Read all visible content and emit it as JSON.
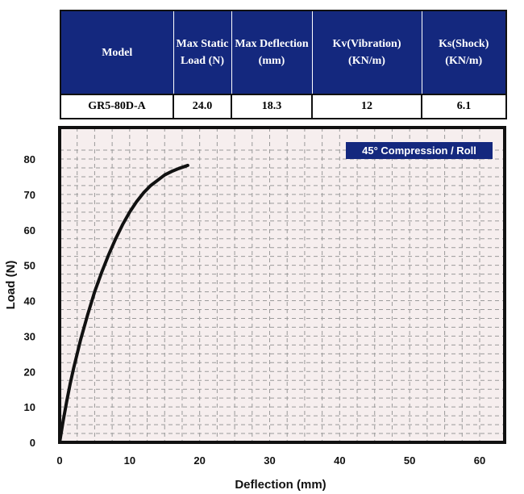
{
  "table": {
    "headers": [
      "Model",
      "Max Static Load (N)",
      "Max Deflection (mm)",
      "Kv(Vibration) (KN/m)",
      "Ks(Shock) (KN/m)"
    ],
    "row": [
      "GR5-80D-A",
      "24.0",
      "18.3",
      "12",
      "6.1"
    ]
  },
  "chart_data": {
    "type": "line",
    "title": "45° Compression / Roll",
    "xlabel": "Deflection (mm)",
    "ylabel": "Load (N)",
    "xlim": [
      0,
      60
    ],
    "ylim": [
      0,
      80
    ],
    "xticks": [
      0,
      10,
      20,
      30,
      40,
      50,
      60
    ],
    "yticks": [
      0,
      10,
      20,
      30,
      40,
      50,
      60,
      70,
      80
    ],
    "grid": true,
    "legend_placement": "top-right",
    "colors": {
      "line": "#111111",
      "legend_bg": "#14287e",
      "plot_bg": "#f6eeee",
      "grid": "#9a9a9a"
    },
    "series": [
      {
        "x": [
          0,
          0.5,
          1,
          1.5,
          2,
          3,
          4,
          5,
          6,
          7,
          8,
          9,
          10,
          11,
          12,
          13,
          14,
          15,
          16,
          17,
          18,
          18.3
        ],
        "y": [
          0,
          6,
          11.5,
          16.5,
          21,
          29,
          36,
          42.5,
          48,
          53,
          57.5,
          61.5,
          65,
          68,
          70.5,
          72.5,
          74,
          75.5,
          76.5,
          77.3,
          78,
          78.2
        ]
      }
    ]
  }
}
